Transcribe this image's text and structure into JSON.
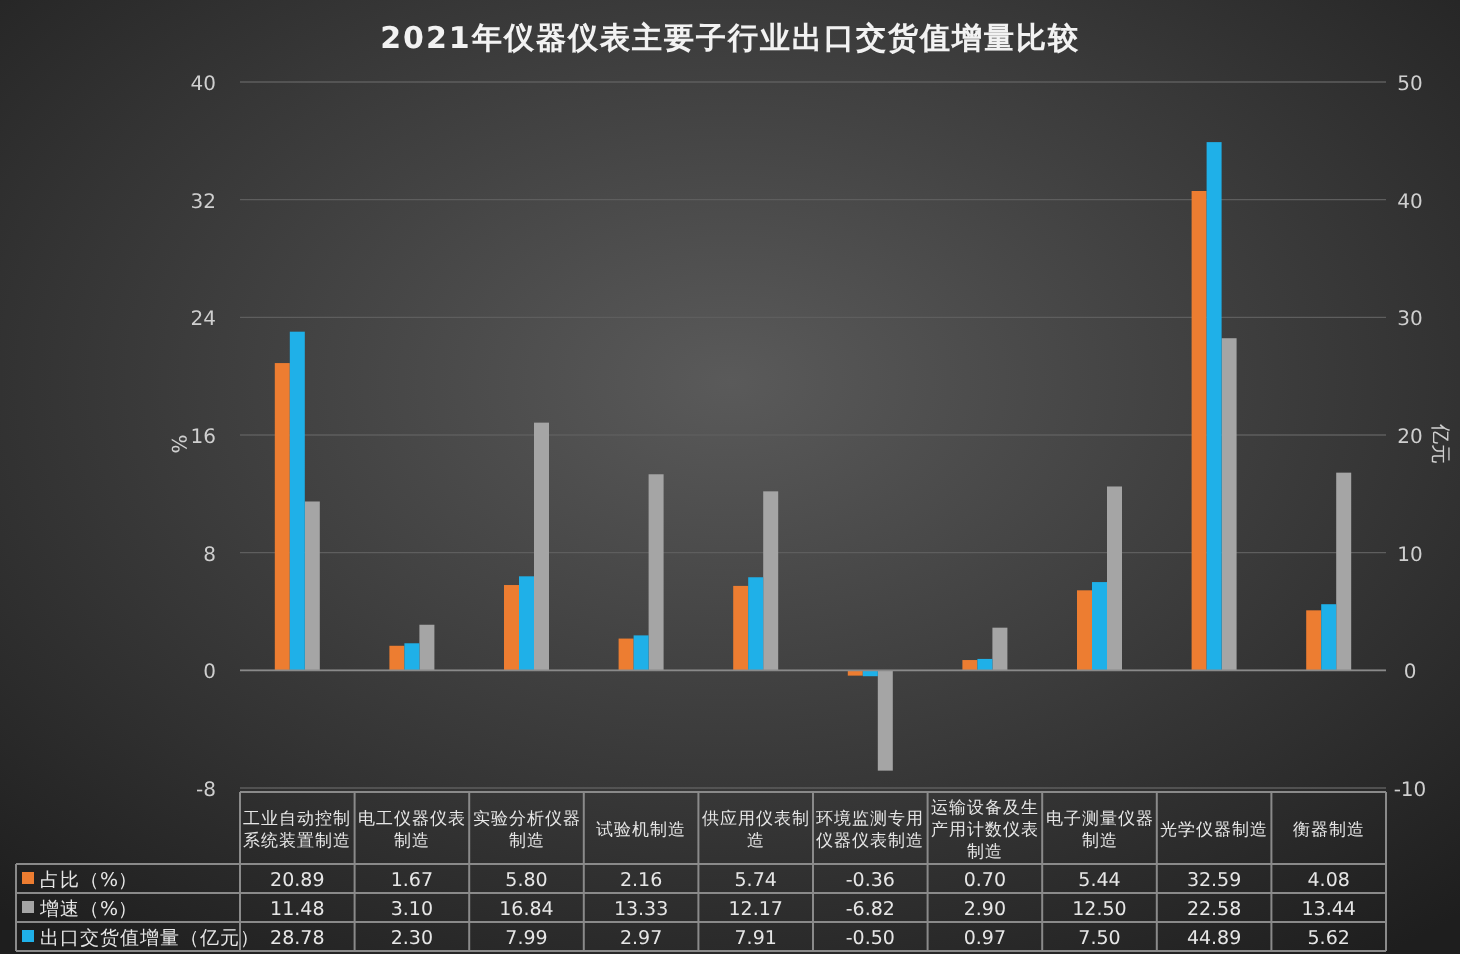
{
  "chart_data": {
    "type": "bar",
    "title": "2021年仪器仪表主要子行业出口交货值增量比较",
    "categories": [
      "工业自动控制系统装置制造",
      "电工仪器仪表制造",
      "实验分析仪器制造",
      "试验机制造",
      "供应用仪表制造",
      "环境监测专用仪器仪表制造",
      "运输设备及生产用计数仪表制造",
      "电子测量仪器制造",
      "光学仪器制造",
      "衡器制造"
    ],
    "ylabel": "%",
    "y2label": "亿元",
    "ylim": [
      -8,
      40
    ],
    "yticks": [
      -8,
      0,
      8,
      16,
      24,
      32,
      40
    ],
    "y2lim": [
      -10,
      50
    ],
    "y2ticks": [
      -10,
      0,
      10,
      20,
      30,
      40,
      50
    ],
    "grid": "y",
    "legend": "bottom",
    "series": [
      {
        "name": "占比（%）",
        "color": "#ed7d31",
        "values": [
          20.89,
          1.67,
          5.8,
          2.16,
          5.74,
          -0.36,
          0.7,
          5.44,
          32.59,
          4.08
        ],
        "value_labels": [
          "20.89",
          "1.67",
          "5.80",
          "2.16",
          "5.74",
          "-0.36",
          "0.70",
          "5.44",
          "32.59",
          "4.08"
        ]
      },
      {
        "name": "增速（%）",
        "color": "#a5a5a5",
        "values": [
          11.48,
          3.1,
          16.84,
          13.33,
          12.17,
          -6.82,
          2.9,
          12.5,
          22.58,
          13.44
        ],
        "value_labels": [
          "11.48",
          "3.10",
          "16.84",
          "13.33",
          "12.17",
          "-6.82",
          "2.90",
          "12.50",
          "22.58",
          "13.44"
        ]
      },
      {
        "name": "出口交货值增量（亿元）",
        "color": "#1fb0e8",
        "axis": "y2",
        "values": [
          28.78,
          2.3,
          7.99,
          2.97,
          7.91,
          -0.5,
          0.97,
          7.5,
          44.89,
          5.62
        ],
        "value_labels": [
          "28.78",
          "2.30",
          "7.99",
          "2.97",
          "7.91",
          "-0.50",
          "0.97",
          "7.50",
          "44.89",
          "5.62"
        ]
      }
    ]
  }
}
